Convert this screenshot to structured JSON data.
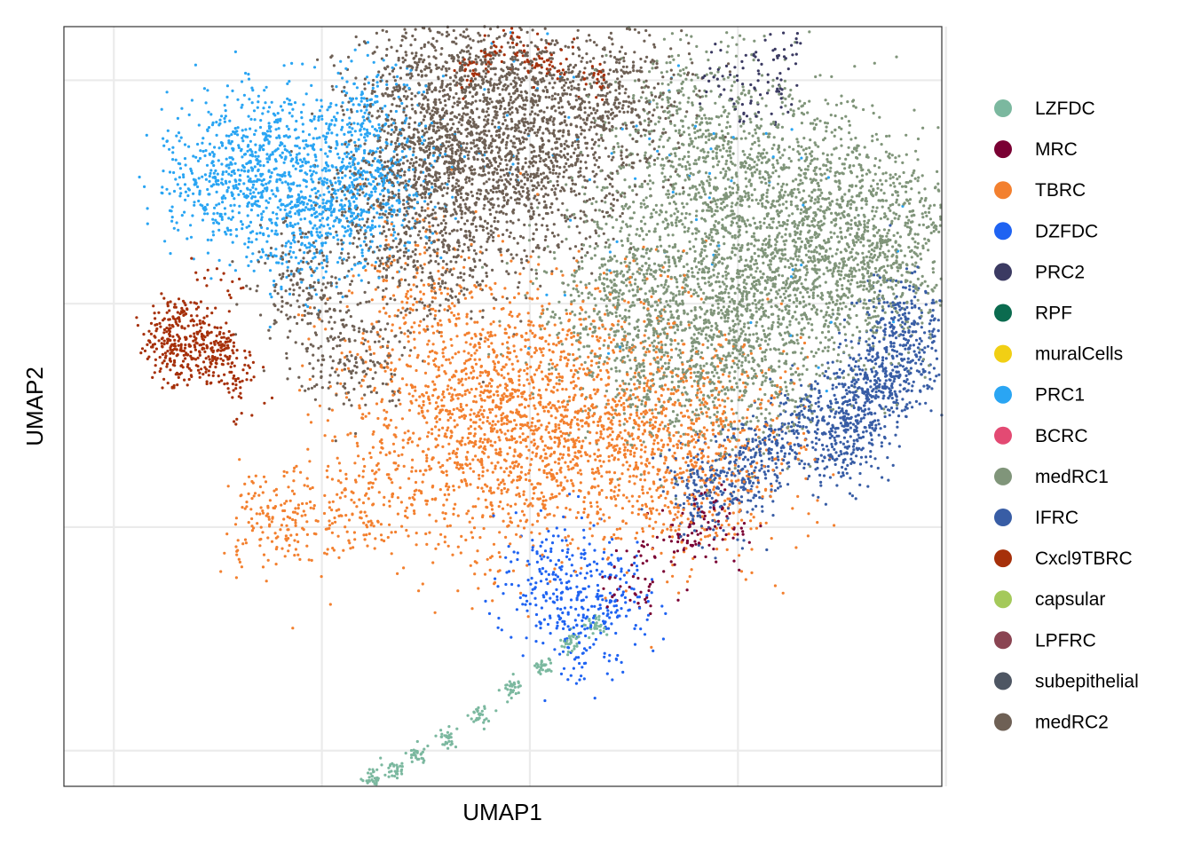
{
  "chart_data": {
    "type": "scatter",
    "title": "",
    "xlabel": "UMAP1",
    "ylabel": "UMAP2",
    "xlim": [
      -2.2,
      18.9
    ],
    "ylim": [
      -2.8,
      14.2
    ],
    "x_gridlines": [
      -1,
      4,
      9,
      14,
      19
    ],
    "y_gridlines": [
      -2,
      3,
      8,
      13
    ],
    "x_tick_labels_shown": false,
    "y_tick_labels_shown": false,
    "grid": true,
    "legend_position": "right",
    "point_size": "small",
    "series": [
      {
        "name": "LZFDC",
        "color": "#7bb89f",
        "clusters": [
          {
            "points": [
              [
                5.2,
                -2.6
              ],
              [
                5.7,
                -2.4
              ],
              [
                6.3,
                -2.1
              ],
              [
                7,
                -1.7
              ],
              [
                7.8,
                -1.2
              ],
              [
                8.6,
                -0.6
              ],
              [
                9.3,
                -0.1
              ],
              [
                10,
                0.4
              ],
              [
                10.6,
                0.8
              ]
            ],
            "spread": 0.12,
            "n": 260
          }
        ]
      },
      {
        "name": "MRC",
        "color": "#7a0033",
        "clusters": [
          {
            "points": [
              [
                11.9,
                2.0
              ],
              [
                12.7,
                2.7
              ],
              [
                12.8,
                3.0
              ],
              [
                13.2,
                3.3
              ],
              [
                13.8,
                2.9
              ],
              [
                11.4,
                1.7
              ]
            ],
            "spread": 0.4,
            "n": 140
          }
        ]
      },
      {
        "name": "TBRC",
        "color": "#f3802f",
        "clusters": [
          {
            "points": [
              [
                8.4,
                5.7
              ],
              [
                9.2,
                5.4
              ],
              [
                10.5,
                6.0
              ],
              [
                11.9,
                5.2
              ],
              [
                8,
                4.1
              ],
              [
                10,
                4.7
              ],
              [
                12.5,
                4.2
              ],
              [
                6.5,
                7.6
              ],
              [
                7.5,
                6.5
              ],
              [
                6.2,
                4.8
              ],
              [
                13.2,
                4.5
              ]
            ],
            "spread": 1.2,
            "n": 2700
          },
          {
            "points": [
              [
                2.5,
                3.0
              ],
              [
                3,
                3.5
              ],
              [
                4,
                3.2
              ],
              [
                5,
                3.3
              ]
            ],
            "spread": 0.5,
            "n": 260
          },
          {
            "points": [
              [
                10.5,
                8.0
              ],
              [
                12,
                7.5
              ],
              [
                14,
                6.2
              ],
              [
                15,
                5.5
              ],
              [
                13,
                6.8
              ]
            ],
            "spread": 1.0,
            "n": 120
          }
        ]
      },
      {
        "name": "DZFDC",
        "color": "#1f63f2",
        "clusters": [
          {
            "points": [
              [
                9.5,
                2.5
              ],
              [
                10.4,
                1.8
              ],
              [
                9.8,
                1.2
              ],
              [
                10.8,
                1.0
              ],
              [
                9.2,
                1.7
              ],
              [
                11.2,
                1.6
              ],
              [
                10.2,
                0.6
              ]
            ],
            "spread": 0.55,
            "n": 380
          }
        ]
      },
      {
        "name": "PRC2",
        "color": "#3b3a62",
        "clusters": [
          {
            "points": [
              [
                14.6,
                13.2
              ],
              [
                15.2,
                13.7
              ],
              [
                14.2,
                12.5
              ],
              [
                13.4,
                13.1
              ],
              [
                14.8,
                12.7
              ]
            ],
            "spread": 0.3,
            "n": 100
          }
        ]
      },
      {
        "name": "RPF",
        "color": "#0b6b4f",
        "clusters": []
      },
      {
        "name": "muralCells",
        "color": "#f1cf14",
        "clusters": []
      },
      {
        "name": "PRC1",
        "color": "#2aa5f3",
        "clusters": [
          {
            "points": [
              [
                1.3,
                10.6
              ],
              [
                2.5,
                10.7
              ],
              [
                3.8,
                10
              ],
              [
                3.2,
                11.5
              ],
              [
                4.5,
                11
              ],
              [
                4.8,
                10.2
              ],
              [
                1.8,
                11.4
              ],
              [
                3,
                9.7
              ],
              [
                5.1,
                12.3
              ],
              [
                5.5,
                10.6
              ]
            ],
            "spread": 0.75,
            "n": 1600
          },
          {
            "points": [
              [
                8,
                11
              ],
              [
                9,
                12
              ],
              [
                11,
                11.5
              ],
              [
                12.5,
                10
              ],
              [
                14,
                11
              ],
              [
                16,
                9
              ],
              [
                10,
                9.5
              ]
            ],
            "spread": 1.5,
            "n": 80
          }
        ]
      },
      {
        "name": "BCRC",
        "color": "#e34a73",
        "clusters": []
      },
      {
        "name": "medRC1",
        "color": "#80957a",
        "clusters": [
          {
            "points": [
              [
                14.6,
                9.2
              ],
              [
                16.5,
                9.8
              ],
              [
                15.2,
                8.1
              ],
              [
                13.3,
                7.4
              ],
              [
                12.1,
                9.1
              ],
              [
                17.2,
                8.8
              ],
              [
                15.6,
                10.7
              ],
              [
                12,
                6.7
              ],
              [
                13.4,
                10.8
              ],
              [
                11,
                8.1
              ],
              [
                14.5,
                7
              ],
              [
                17.8,
                9.6
              ],
              [
                13,
                12
              ]
            ],
            "spread": 1.1,
            "n": 4200
          }
        ]
      },
      {
        "name": "IFRC",
        "color": "#385da5",
        "clusters": [
          {
            "points": [
              [
                18.3,
                6.9
              ],
              [
                17.7,
                6.2
              ],
              [
                16.9,
                5.6
              ],
              [
                15.8,
                5.3
              ],
              [
                14.8,
                4.6
              ],
              [
                13.8,
                4.1
              ],
              [
                13.1,
                3.7
              ],
              [
                17.2,
                6.4
              ],
              [
                18,
                7.8
              ],
              [
                16.5,
                4.8
              ]
            ],
            "spread": 0.5,
            "n": 1350
          }
        ]
      },
      {
        "name": "Cxcl9TBRC",
        "color": "#a6300a",
        "clusters": [
          {
            "points": [
              [
                0.6,
                7.6
              ],
              [
                0.9,
                7.1
              ],
              [
                0.6,
                6.7
              ],
              [
                1.4,
                7
              ],
              [
                0.2,
                7.2
              ],
              [
                1.8,
                6.6
              ]
            ],
            "spread": 0.35,
            "n": 420
          },
          {
            "points": [
              [
                9.6,
                13.5
              ],
              [
                8,
                13.6
              ],
              [
                8.7,
                13.7
              ],
              [
                10.6,
                13.0
              ],
              [
                7.6,
                13.2
              ],
              [
                9.2,
                13.3
              ]
            ],
            "spread": 0.2,
            "n": 140
          },
          {
            "points": [
              [
                2.2,
                5.8
              ],
              [
                1.6,
                8.6
              ]
            ],
            "spread": 0.4,
            "n": 30
          }
        ]
      },
      {
        "name": "capsular",
        "color": "#a4c95a",
        "clusters": []
      },
      {
        "name": "LPFRC",
        "color": "#8a4452",
        "clusters": []
      },
      {
        "name": "subepithelial",
        "color": "#4e5663",
        "clusters": []
      },
      {
        "name": "medRC2",
        "color": "#6e6055",
        "clusters": [
          {
            "points": [
              [
                6.2,
                12.5
              ],
              [
                7.5,
                12.1
              ],
              [
                8.8,
                11.6
              ],
              [
                6.8,
                10.7
              ],
              [
                7.9,
                10.3
              ],
              [
                9.6,
                10.8
              ],
              [
                10.1,
                12.6
              ],
              [
                5.6,
                10.3
              ],
              [
                8.3,
                12.9
              ],
              [
                11.2,
                12.5
              ],
              [
                6.5,
                9
              ],
              [
                7,
                12.9
              ]
            ],
            "spread": 0.95,
            "n": 3200
          },
          {
            "points": [
              [
                3.8,
                8.3
              ],
              [
                4.6,
                7.2
              ],
              [
                3.5,
                7.8
              ],
              [
                3.2,
                8.8
              ],
              [
                4.3,
                6.6
              ],
              [
                5.3,
                6.5
              ]
            ],
            "spread": 0.55,
            "n": 350
          }
        ]
      }
    ]
  }
}
